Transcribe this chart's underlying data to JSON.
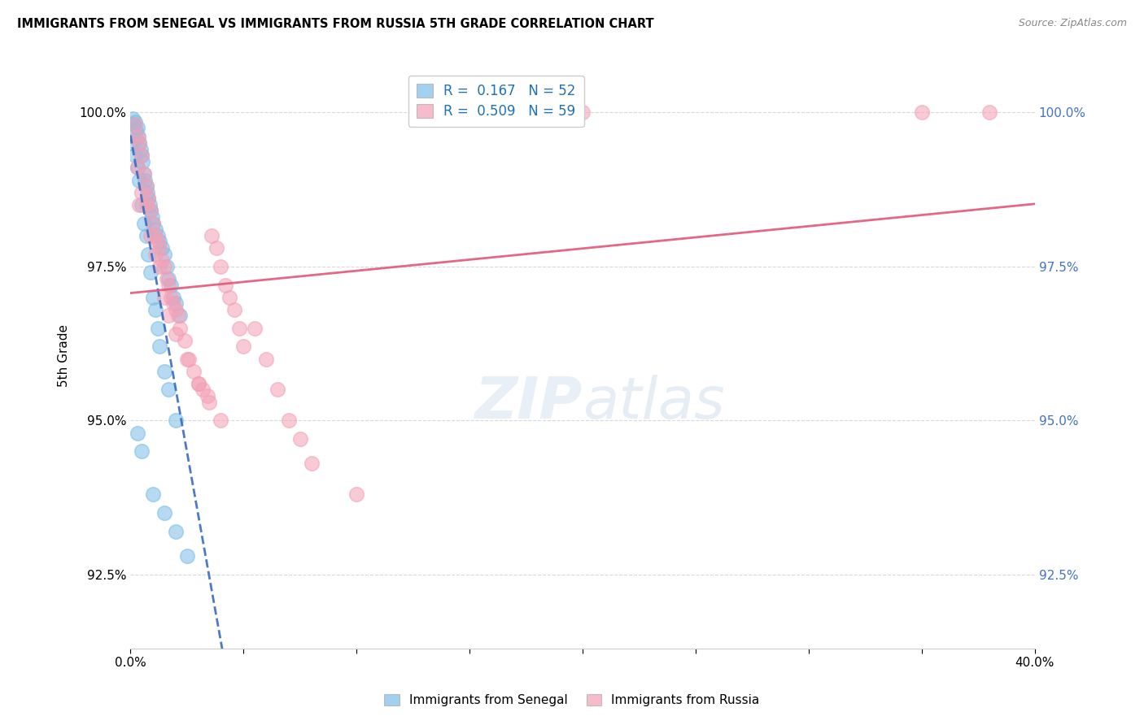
{
  "title": "IMMIGRANTS FROM SENEGAL VS IMMIGRANTS FROM RUSSIA 5TH GRADE CORRELATION CHART",
  "source": "Source: ZipAtlas.com",
  "ylabel": "5th Grade",
  "xlim": [
    0.0,
    40.0
  ],
  "ylim": [
    91.3,
    100.8
  ],
  "yticks": [
    92.5,
    95.0,
    97.5,
    100.0
  ],
  "ytick_labels": [
    "92.5%",
    "95.0%",
    "97.5%",
    "100.0%"
  ],
  "legend_senegal": "Immigrants from Senegal",
  "legend_russia": "Immigrants from Russia",
  "r_senegal": "0.167",
  "n_senegal": "52",
  "r_russia": "0.509",
  "n_russia": "59",
  "blue_color": "#7bbde8",
  "pink_color": "#f4a0b5",
  "blue_line_color": "#3a6bbf",
  "pink_line_color": "#e05878",
  "senegal_x": [
    0.1,
    0.15,
    0.2,
    0.25,
    0.3,
    0.35,
    0.4,
    0.45,
    0.5,
    0.55,
    0.6,
    0.65,
    0.7,
    0.75,
    0.8,
    0.85,
    0.9,
    0.95,
    1.0,
    1.1,
    1.2,
    1.3,
    1.4,
    1.5,
    1.6,
    1.7,
    1.8,
    1.9,
    2.0,
    2.2,
    0.1,
    0.2,
    0.3,
    0.4,
    0.5,
    0.6,
    0.7,
    0.8,
    0.9,
    1.0,
    1.1,
    1.2,
    1.3,
    1.5,
    1.7,
    2.0,
    0.3,
    0.5,
    1.0,
    1.5,
    2.0,
    2.5
  ],
  "senegal_y": [
    99.9,
    99.8,
    99.85,
    99.7,
    99.75,
    99.6,
    99.5,
    99.4,
    99.3,
    99.2,
    99.0,
    98.9,
    98.8,
    98.7,
    98.6,
    98.5,
    98.4,
    98.3,
    98.2,
    98.1,
    98.0,
    97.9,
    97.8,
    97.7,
    97.5,
    97.3,
    97.2,
    97.0,
    96.9,
    96.7,
    99.5,
    99.3,
    99.1,
    98.9,
    98.5,
    98.2,
    98.0,
    97.7,
    97.4,
    97.0,
    96.8,
    96.5,
    96.2,
    95.8,
    95.5,
    95.0,
    94.8,
    94.5,
    93.8,
    93.5,
    93.2,
    92.8
  ],
  "russia_x": [
    0.2,
    0.3,
    0.4,
    0.5,
    0.6,
    0.7,
    0.8,
    0.9,
    1.0,
    1.1,
    1.2,
    1.3,
    1.4,
    1.5,
    1.6,
    1.7,
    1.8,
    1.9,
    2.0,
    2.1,
    2.2,
    2.4,
    2.6,
    2.8,
    3.0,
    3.2,
    3.4,
    3.6,
    3.8,
    4.0,
    4.2,
    4.4,
    4.6,
    4.8,
    5.0,
    0.3,
    0.5,
    0.7,
    0.9,
    1.1,
    1.3,
    1.5,
    1.7,
    2.0,
    2.5,
    3.0,
    3.5,
    4.0,
    5.5,
    6.0,
    6.5,
    7.0,
    7.5,
    8.0,
    10.0,
    20.0,
    35.0,
    38.0,
    0.4
  ],
  "russia_y": [
    99.8,
    99.6,
    99.5,
    99.3,
    99.0,
    98.8,
    98.6,
    98.4,
    98.2,
    98.0,
    97.9,
    97.8,
    97.6,
    97.5,
    97.3,
    97.2,
    97.0,
    96.9,
    96.8,
    96.7,
    96.5,
    96.3,
    96.0,
    95.8,
    95.6,
    95.5,
    95.4,
    98.0,
    97.8,
    97.5,
    97.2,
    97.0,
    96.8,
    96.5,
    96.2,
    99.1,
    98.7,
    98.5,
    98.0,
    97.7,
    97.5,
    97.0,
    96.7,
    96.4,
    96.0,
    95.6,
    95.3,
    95.0,
    96.5,
    96.0,
    95.5,
    95.0,
    94.7,
    94.3,
    93.8,
    100.0,
    100.0,
    100.0,
    98.5
  ]
}
